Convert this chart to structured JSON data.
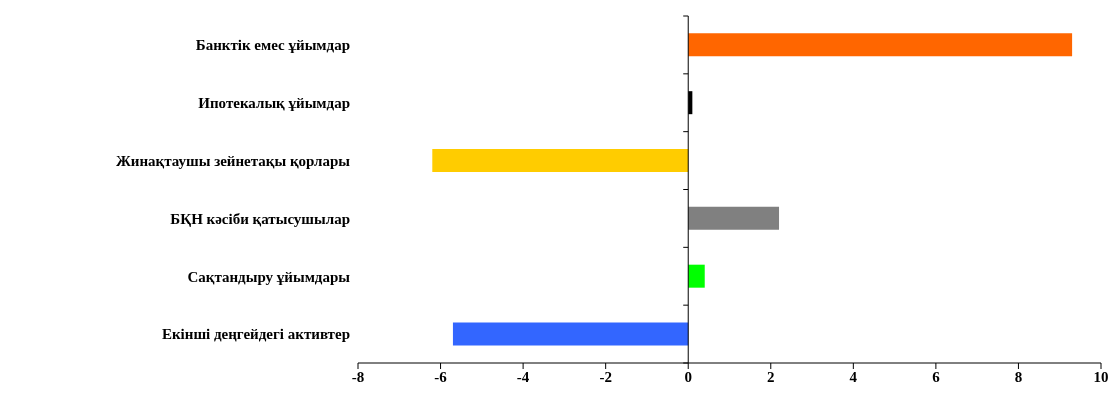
{
  "chart_data": {
    "type": "bar",
    "orientation": "horizontal",
    "categories": [
      "Банктік емес ұйымдар",
      "Ипотекалық ұйымдар",
      "Жинақтаушы зейнетақы қорлары",
      "БҚН кәсіби қатысушылар",
      "Сақтандыру ұйымдары",
      "Екінші деңгейдегі активтер"
    ],
    "values": [
      9.3,
      0.1,
      -6.2,
      2.2,
      0.4,
      -5.7
    ],
    "colors": [
      "#ff6600",
      "#000000",
      "#ffcc00",
      "#808080",
      "#00ff00",
      "#3366ff"
    ],
    "xlim": [
      -8,
      10
    ],
    "xticks": [
      -8,
      -6,
      -4,
      -2,
      0,
      2,
      4,
      6,
      8,
      10
    ],
    "legend": false
  }
}
